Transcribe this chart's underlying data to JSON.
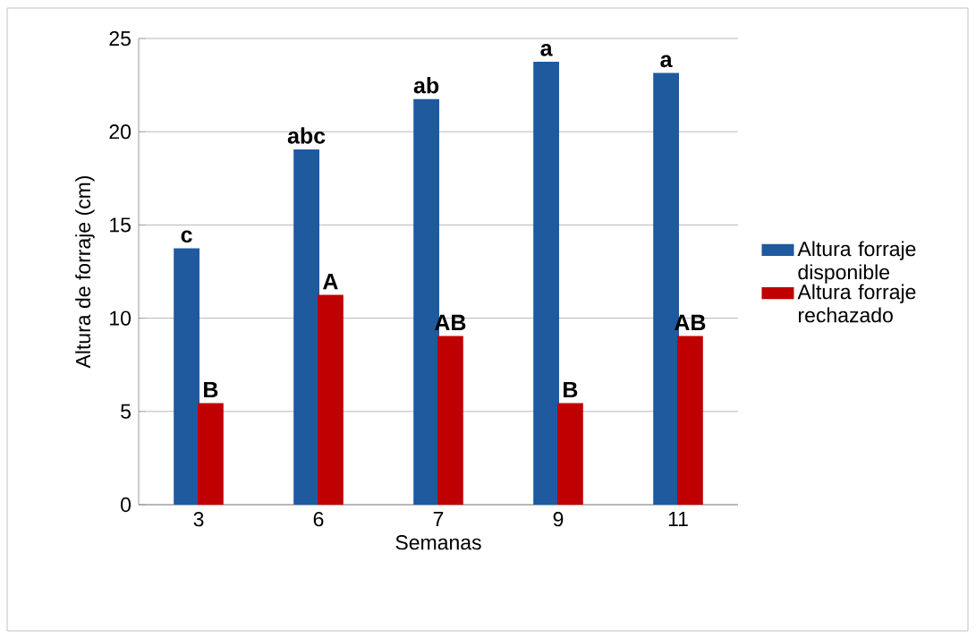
{
  "chart_data": {
    "type": "bar",
    "xlabel": "Semanas",
    "ylabel": "Altura de forraje (cm)",
    "categories": [
      "3",
      "6",
      "7",
      "9",
      "11"
    ],
    "series": [
      {
        "name": "Altura forraje disponible",
        "color": "#1f5a9e",
        "values": [
          13.7,
          19.0,
          21.7,
          23.7,
          23.1
        ],
        "value_labels": [
          "c",
          "abc",
          "ab",
          "a",
          "a"
        ]
      },
      {
        "name": "Altura forraje rechazado",
        "color": "#c00000",
        "values": [
          5.4,
          11.2,
          9.0,
          5.4,
          9.0
        ],
        "value_labels": [
          "B",
          "A",
          "AB",
          "B",
          "AB"
        ]
      }
    ],
    "ylim": [
      0,
      25
    ],
    "yticks": [
      0,
      5,
      10,
      15,
      20,
      25
    ],
    "grid": "y",
    "legend": "right"
  }
}
